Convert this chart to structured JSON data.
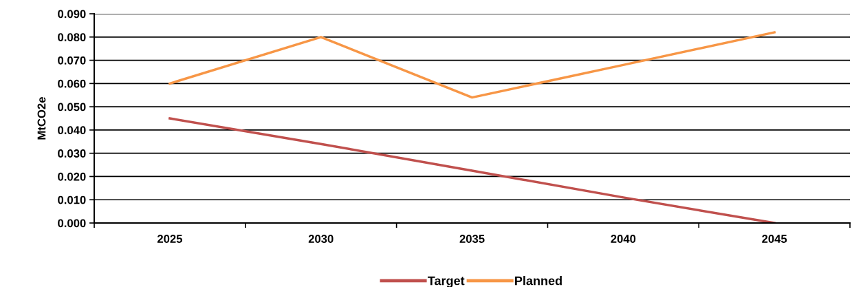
{
  "chart_data": {
    "type": "line",
    "ylabel": "MtCO2e",
    "categories": [
      "2025",
      "2030",
      "2035",
      "2040",
      "2045"
    ],
    "series": [
      {
        "name": "Target",
        "color": "#c0504d",
        "values": [
          0.045,
          0.034,
          0.0225,
          0.011,
          0.0
        ]
      },
      {
        "name": "Planned",
        "color": "#f79646",
        "values": [
          0.06,
          0.08,
          0.054,
          0.068,
          0.082
        ]
      }
    ],
    "ylim": [
      0,
      0.09
    ],
    "yticks": [
      {
        "value": 0,
        "label": "0.000"
      },
      {
        "value": 0.01,
        "label": "0.010"
      },
      {
        "value": 0.02,
        "label": "0.020"
      },
      {
        "value": 0.03,
        "label": "0.030"
      },
      {
        "value": 0.04,
        "label": "0.040"
      },
      {
        "value": 0.05,
        "label": "0.050"
      },
      {
        "value": 0.06,
        "label": "0.060"
      },
      {
        "value": 0.07,
        "label": "0.070"
      },
      {
        "value": 0.08,
        "label": "0.080"
      },
      {
        "value": 0.09,
        "label": "0.090"
      }
    ],
    "grid": "y",
    "legend": "bottom",
    "marker": "none",
    "line_style": "solid"
  }
}
